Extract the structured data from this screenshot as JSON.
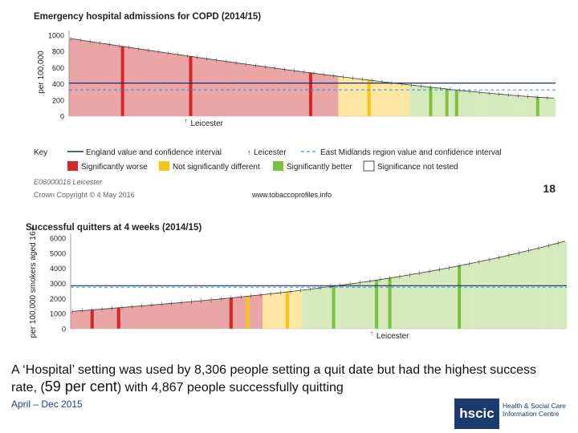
{
  "colors": {
    "worse": "#d62828",
    "worse_light": "#eaa6a6",
    "notsig": "#f5c518",
    "notsig_light": "#fbe6a2",
    "better": "#7cc242",
    "better_light": "#d6ebbd",
    "england": "#1a2a6c",
    "region": "#3b8fd9"
  },
  "chart_data": [
    {
      "type": "bar",
      "title": "Emergency hospital admissions for COPD (2014/15)",
      "ylabel": "per 100,000",
      "ylim": [
        0,
        1000
      ],
      "yticks": [
        0,
        200,
        400,
        600,
        800,
        1000
      ],
      "n_areas": 150,
      "start_value": 960,
      "end_value": 225,
      "category_counts": {
        "worse": 83,
        "notsig": 22,
        "better": 45
      },
      "england_value": 410,
      "region_value": 325,
      "highlight_label": "Leicester",
      "highlight_index": 36,
      "emphasised_bars": [
        {
          "index": 16,
          "category": "worse"
        },
        {
          "index": 37,
          "category": "worse"
        },
        {
          "index": 74,
          "category": "worse"
        },
        {
          "index": 92,
          "category": "notsig"
        },
        {
          "index": 111,
          "category": "better"
        },
        {
          "index": 116,
          "category": "better"
        },
        {
          "index": 119,
          "category": "better"
        },
        {
          "index": 144,
          "category": "better"
        }
      ],
      "key": {
        "title": "Key",
        "england": "England value and confidence interval",
        "highlight": "Leicester",
        "region": "East Midlands region value and confidence interval",
        "worse": "Significantly worse",
        "notsig": "Not significantly different",
        "better": "Significantly better",
        "nottested": "Significance not tested"
      },
      "code_label": "E06000016 Leicester",
      "copyright": "Crown Copyright © 4 May 2016",
      "website": "www.tobaccoprofiles.info"
    },
    {
      "type": "bar",
      "title": "Successful quitters at 4 weeks (2014/15)",
      "ylabel": "per 100,000 smokers aged 16+",
      "ylim": [
        0,
        6000
      ],
      "yticks": [
        0,
        1000,
        2000,
        3000,
        4000,
        5000,
        6000
      ],
      "n_areas": 150,
      "start_value": 1150,
      "end_value": 5800,
      "category_counts": {
        "worse": 58,
        "notsig": 12,
        "better": 80
      },
      "england_value": 2850,
      "region_value": 2750,
      "highlight_label": "Leicester",
      "highlight_index": 91,
      "emphasised_bars": [
        {
          "index": 6,
          "category": "worse"
        },
        {
          "index": 14,
          "category": "worse"
        },
        {
          "index": 48,
          "category": "worse"
        },
        {
          "index": 53,
          "category": "notsig"
        },
        {
          "index": 65,
          "category": "notsig"
        },
        {
          "index": 79,
          "category": "better"
        },
        {
          "index": 92,
          "category": "better"
        },
        {
          "index": 96,
          "category": "better"
        },
        {
          "index": 117,
          "category": "better"
        }
      ]
    }
  ],
  "page_number": "18",
  "caption": {
    "part1": "A ‘Hospital’ setting was used by 8,306 people setting a quit date but had the highest success rate, (",
    "emph": "59 per cent",
    "part2": ") with 4,867 people successfully quitting"
  },
  "date_range": "April – Dec 2015",
  "logo": {
    "mark": "hscic",
    "line1": "Health & Social Care",
    "line2": "Information Centre"
  }
}
